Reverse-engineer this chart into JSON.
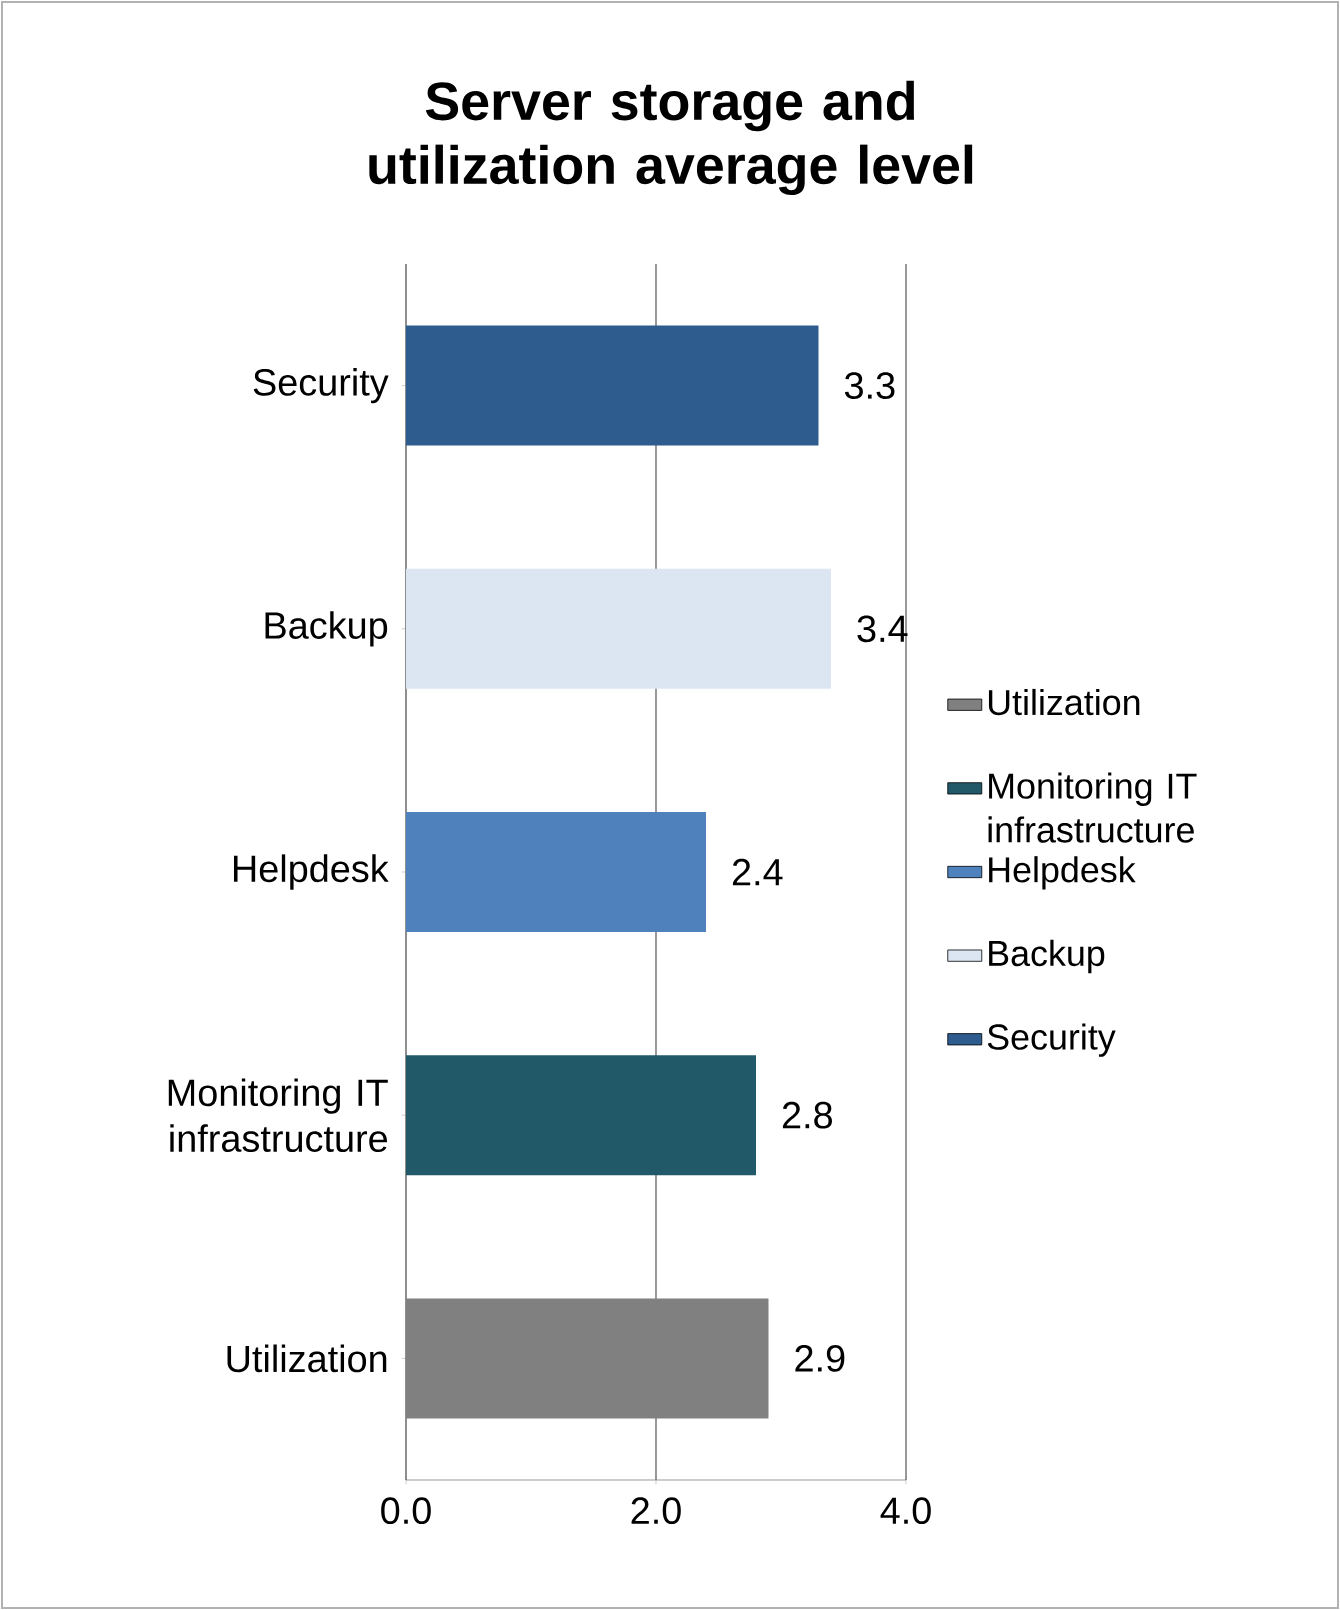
{
  "chart_data": {
    "type": "bar",
    "orientation": "horizontal",
    "title": "Server storage and utilization average level",
    "categories": [
      "Security",
      "Backup",
      "Helpdesk",
      "Monitoring IT infrastructure",
      "Utilization"
    ],
    "series": [
      {
        "name": "Security",
        "color": "#2f5c8f",
        "values": [
          3.3,
          null,
          null,
          null,
          null
        ]
      },
      {
        "name": "Backup",
        "color": "#dce6f2",
        "values": [
          null,
          3.4,
          null,
          null,
          null
        ]
      },
      {
        "name": "Helpdesk",
        "color": "#4f81bd",
        "values": [
          null,
          null,
          2.4,
          null,
          null
        ]
      },
      {
        "name": "Monitoring IT infrastructure",
        "color": "#215968",
        "values": [
          null,
          null,
          null,
          2.8,
          null
        ]
      },
      {
        "name": "Utilization",
        "color": "#808080",
        "values": [
          null,
          null,
          null,
          null,
          2.9
        ]
      }
    ],
    "xlim": [
      0,
      4
    ],
    "xticks": [
      {
        "value": 0,
        "label": "0.0"
      },
      {
        "value": 2,
        "label": "2.0"
      },
      {
        "value": 4,
        "label": "4.0"
      }
    ],
    "grid": "x",
    "legend": "right",
    "data_labels": true
  }
}
